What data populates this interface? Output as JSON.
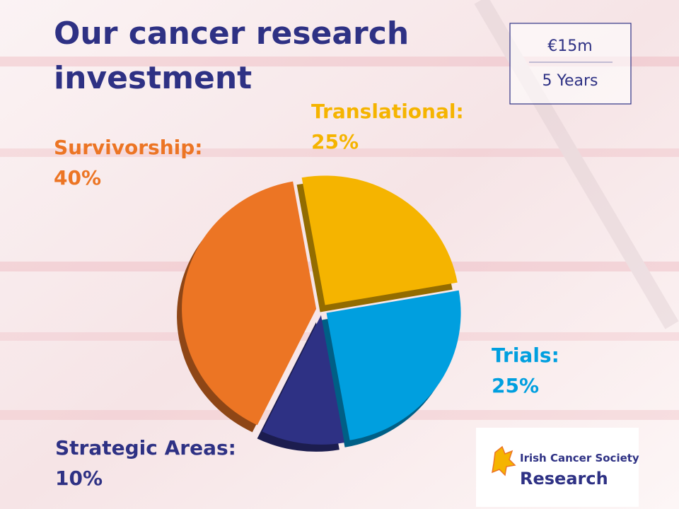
{
  "chart_data": {
    "type": "pie",
    "title": "Our cancer research investment",
    "categories": [
      "Translational:",
      "Trials:",
      "Strategic Areas:",
      "Survivorship:"
    ],
    "values": [
      25,
      25,
      10,
      40
    ],
    "value_labels": [
      "25%",
      "25%",
      "10%",
      "40%"
    ],
    "colors": [
      "#f5b400",
      "#009fdf",
      "#2e3184",
      "#ec7524"
    ],
    "annotations": [
      "€15m",
      "5 Years"
    ]
  },
  "logo": {
    "name": "Irish Cancer Society",
    "subtitle": "Research"
  }
}
